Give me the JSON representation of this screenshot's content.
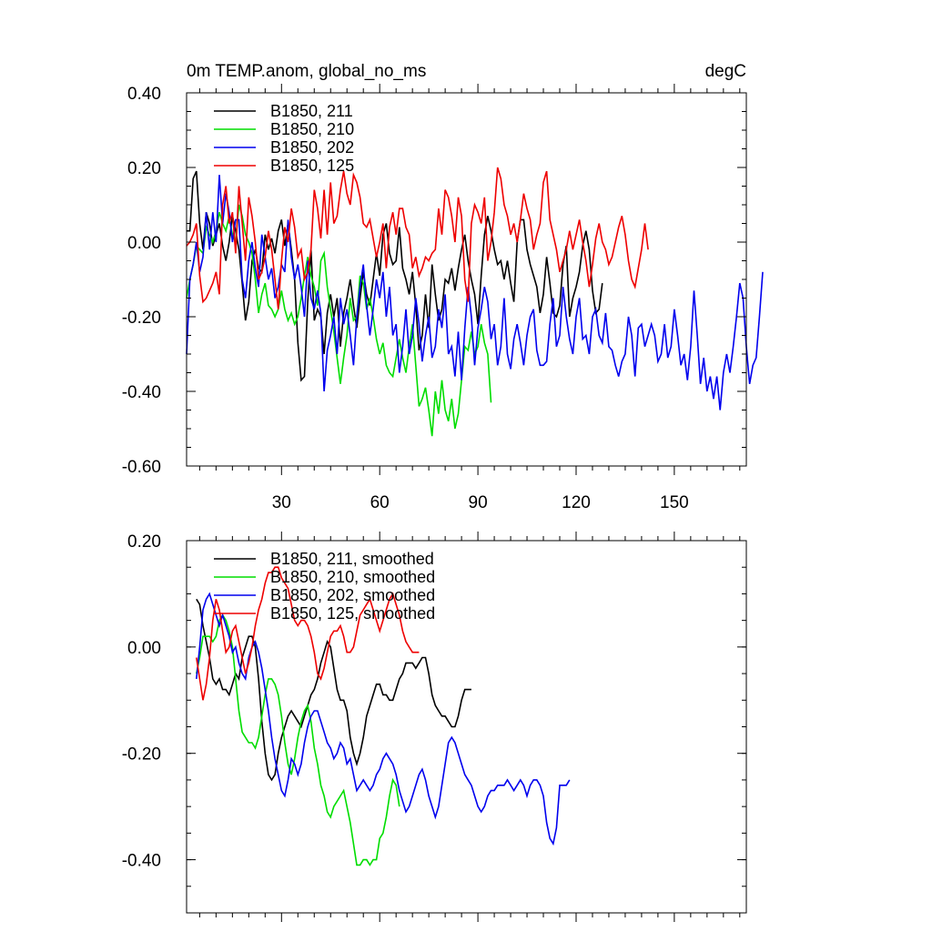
{
  "chart_data": [
    {
      "type": "line",
      "title": "0m TEMP.anom, global_no_ms",
      "units": "degC",
      "xlabel": "",
      "ylabel": "",
      "xlim": [
        1,
        172
      ],
      "ylim": [
        -0.6,
        0.4
      ],
      "yticks": [
        -0.6,
        -0.4,
        -0.2,
        0.0,
        0.2,
        0.4
      ],
      "ytick_labels": [
        "-0.60",
        "-0.40",
        "-0.20",
        "0.00",
        "0.20",
        "0.40"
      ],
      "xticks": [
        30,
        60,
        90,
        120,
        150
      ],
      "xtick_labels": [
        "30",
        "60",
        "90",
        "120",
        "150"
      ],
      "legend": "top-left",
      "series": [
        {
          "name": "B1850, 211",
          "color": "#000000",
          "x_start": 1,
          "values": [
            0.03,
            0.03,
            0.17,
            0.19,
            0.05,
            -0.02,
            0.08,
            0.05,
            -0.01,
            0.02,
            0.05,
            -0.01,
            -0.05,
            0.0,
            0.07,
            0.03,
            -0.02,
            -0.11,
            -0.21,
            -0.16,
            -0.05,
            -0.02,
            -0.07,
            -0.08,
            0.02,
            -0.02,
            0.01,
            -0.03,
            0.03,
            0.06,
            -0.01,
            0.05,
            -0.02,
            -0.1,
            -0.27,
            -0.37,
            -0.36,
            -0.16,
            -0.02,
            -0.21,
            -0.18,
            -0.2,
            -0.3,
            -0.19,
            -0.14,
            -0.2,
            -0.15,
            -0.28,
            -0.19,
            -0.15,
            -0.1,
            -0.17,
            -0.23,
            -0.15,
            -0.08,
            -0.14,
            -0.17,
            -0.1,
            -0.03,
            -0.09,
            0.02,
            0.05,
            -0.03,
            -0.06,
            -0.05,
            0.04,
            -0.07,
            -0.1,
            -0.14,
            -0.08,
            -0.17,
            -0.29,
            -0.25,
            -0.14,
            -0.23,
            -0.06,
            -0.14,
            -0.21,
            -0.18,
            -0.1,
            -0.11,
            -0.07,
            -0.13,
            -0.07,
            -0.02,
            0.02,
            -0.05,
            -0.1,
            -0.14,
            -0.22,
            -0.09,
            0.02,
            0.07,
            0.03,
            -0.02,
            -0.06,
            -0.05,
            -0.1,
            -0.05,
            -0.11,
            -0.16,
            0.0,
            0.06,
            0.06,
            -0.02,
            -0.06,
            -0.09,
            -0.12,
            -0.19,
            -0.14,
            -0.04,
            -0.11,
            -0.19,
            -0.2,
            -0.17,
            -0.06,
            -0.01,
            -0.2,
            -0.15,
            -0.12,
            -0.08,
            -0.01,
            0.03,
            -0.02,
            -0.13,
            -0.19,
            -0.18,
            -0.11
          ]
        },
        {
          "name": "B1850, 210",
          "color": "#00dd00",
          "x_start": 1,
          "values": [
            -0.15,
            -0.1,
            -0.06,
            -0.01,
            -0.02,
            -0.03,
            0.04,
            0.02,
            0.0,
            0.03,
            0.08,
            0.05,
            0.03,
            0.07,
            0.02,
            0.0,
            0.1,
            0.07,
            0.02,
            0.0,
            -0.03,
            -0.1,
            -0.19,
            -0.14,
            -0.11,
            -0.17,
            -0.18,
            -0.2,
            -0.18,
            -0.13,
            -0.18,
            -0.21,
            -0.19,
            -0.22,
            -0.2,
            -0.15,
            -0.09,
            -0.04,
            -0.09,
            -0.12,
            -0.17,
            -0.05,
            -0.03,
            -0.12,
            -0.18,
            -0.24,
            -0.31,
            -0.38,
            -0.31,
            -0.25,
            -0.15,
            -0.21,
            -0.2,
            -0.09,
            -0.11,
            -0.18,
            -0.15,
            -0.2,
            -0.26,
            -0.3,
            -0.27,
            -0.33,
            -0.35,
            -0.36,
            -0.31,
            -0.26,
            -0.31,
            -0.35,
            -0.28,
            -0.22,
            -0.33,
            -0.44,
            -0.42,
            -0.39,
            -0.45,
            -0.52,
            -0.4,
            -0.46,
            -0.37,
            -0.45,
            -0.48,
            -0.42,
            -0.5,
            -0.46,
            -0.37,
            -0.28,
            -0.29,
            -0.24,
            -0.3,
            -0.28,
            -0.22,
            -0.27,
            -0.3,
            -0.43
          ]
        },
        {
          "name": "B1850, 202",
          "color": "#0000ee",
          "x_start": 1,
          "values": [
            -0.3,
            -0.1,
            -0.06,
            0.0,
            -0.08,
            -0.04,
            0.08,
            -0.02,
            0.08,
            0.0,
            0.18,
            0.05,
            0.13,
            0.08,
            0.0,
            0.06,
            0.06,
            -0.1,
            -0.15,
            -0.05,
            0.0,
            -0.07,
            -0.12,
            0.02,
            -0.04,
            -0.1,
            -0.07,
            -0.15,
            -0.12,
            -0.06,
            -0.08,
            0.06,
            -0.04,
            -0.1,
            -0.06,
            -0.12,
            -0.2,
            -0.05,
            -0.15,
            -0.18,
            -0.13,
            -0.19,
            -0.4,
            -0.29,
            -0.25,
            -0.2,
            -0.3,
            -0.15,
            -0.22,
            -0.18,
            -0.25,
            -0.33,
            -0.2,
            -0.12,
            -0.06,
            -0.17,
            -0.25,
            -0.18,
            -0.1,
            -0.15,
            -0.08,
            -0.2,
            -0.12,
            -0.25,
            -0.22,
            -0.35,
            -0.28,
            -0.18,
            -0.3,
            -0.25,
            -0.15,
            -0.22,
            -0.32,
            -0.25,
            -0.2,
            -0.31,
            -0.28,
            -0.18,
            -0.23,
            -0.14,
            -0.3,
            -0.28,
            -0.36,
            -0.24,
            -0.37,
            -0.23,
            -0.12,
            -0.2,
            -0.33,
            -0.23,
            -0.18,
            -0.12,
            -0.16,
            -0.26,
            -0.22,
            -0.33,
            -0.28,
            -0.15,
            -0.3,
            -0.34,
            -0.26,
            -0.22,
            -0.27,
            -0.33,
            -0.25,
            -0.2,
            -0.18,
            -0.29,
            -0.33,
            -0.33,
            -0.32,
            -0.22,
            -0.15,
            -0.28,
            -0.25,
            -0.12,
            -0.2,
            -0.26,
            -0.3,
            -0.2,
            -0.15,
            -0.26,
            -0.25,
            -0.3,
            -0.2,
            -0.18,
            -0.25,
            -0.27,
            -0.19,
            -0.28,
            -0.29,
            -0.33,
            -0.36,
            -0.32,
            -0.3,
            -0.2,
            -0.25,
            -0.36,
            -0.23,
            -0.22,
            -0.28,
            -0.25,
            -0.22,
            -0.25,
            -0.32,
            -0.3,
            -0.22,
            -0.31,
            -0.28,
            -0.18,
            -0.25,
            -0.33,
            -0.3,
            -0.37,
            -0.28,
            -0.13,
            -0.25,
            -0.38,
            -0.31,
            -0.4,
            -0.36,
            -0.42,
            -0.36,
            -0.45,
            -0.35,
            -0.3,
            -0.35,
            -0.28,
            -0.2,
            -0.11,
            -0.15,
            -0.28,
            -0.38,
            -0.33,
            -0.31,
            -0.2,
            -0.08
          ]
        },
        {
          "name": "B1850, 125",
          "color": "#ee0000",
          "x_start": 1,
          "values": [
            -0.01,
            0.0,
            0.02,
            0.05,
            -0.09,
            -0.16,
            -0.15,
            -0.13,
            -0.11,
            -0.08,
            -0.14,
            0.1,
            0.15,
            0.05,
            0.08,
            -0.03,
            0.15,
            0.05,
            -0.05,
            0.12,
            0.07,
            0.0,
            -0.1,
            -0.08,
            -0.04,
            0.03,
            -0.02,
            -0.1,
            -0.18,
            -0.05,
            0.04,
            0.0,
            0.09,
            0.04,
            -0.04,
            -0.02,
            -0.1,
            -0.08,
            -0.02,
            0.14,
            0.09,
            0.01,
            0.14,
            0.02,
            0.16,
            0.05,
            0.07,
            0.14,
            0.19,
            0.13,
            0.1,
            0.18,
            0.16,
            0.12,
            0.05,
            0.04,
            0.06,
            0.01,
            -0.04,
            0.0,
            0.05,
            -0.07,
            0.04,
            0.08,
            0.02,
            0.09,
            0.09,
            0.04,
            0.02,
            -0.07,
            -0.04,
            -0.09,
            -0.07,
            -0.04,
            -0.05,
            -0.03,
            -0.02,
            0.09,
            0.02,
            0.14,
            0.12,
            0.07,
            0.0,
            0.12,
            0.07,
            -0.1,
            -0.16,
            0.05,
            0.1,
            0.08,
            0.05,
            0.12,
            -0.05,
            0.0,
            0.08,
            0.2,
            0.17,
            0.1,
            0.07,
            0.02,
            0.05,
            0.0,
            0.06,
            0.13,
            0.09,
            0.06,
            -0.02,
            0.02,
            0.05,
            0.16,
            0.19,
            0.06,
            0.02,
            -0.02,
            -0.08,
            -0.05,
            -0.02,
            0.03,
            -0.02,
            0.02,
            0.06,
            0.0,
            -0.05,
            -0.12,
            -0.06,
            0.01,
            0.05,
            0.0,
            -0.02,
            -0.06,
            -0.04,
            0.0,
            0.04,
            0.07,
            0.02,
            -0.05,
            -0.1,
            -0.12,
            -0.07,
            -0.02,
            0.05,
            -0.02
          ]
        }
      ]
    },
    {
      "type": "line",
      "title": "",
      "xlabel": "",
      "ylabel": "",
      "xlim": [
        1,
        172
      ],
      "ylim": [
        -0.5,
        0.2
      ],
      "yticks": [
        -0.4,
        -0.2,
        0.0,
        0.2
      ],
      "ytick_labels": [
        "-0.40",
        "-0.20",
        "0.00",
        "0.20"
      ],
      "xticks": [
        30,
        60,
        90,
        120,
        150
      ],
      "xtick_labels": [],
      "legend": "top-left",
      "series": [
        {
          "name": "B1850, 211, smoothed",
          "color": "#000000",
          "x_start": 4,
          "values": [
            0.09,
            0.08,
            0.04,
            0.01,
            -0.02,
            -0.06,
            -0.07,
            -0.06,
            -0.08,
            -0.08,
            -0.09,
            -0.07,
            -0.05,
            -0.06,
            -0.02,
            0.0,
            0.02,
            0.02,
            0.0,
            -0.06,
            -0.14,
            -0.2,
            -0.24,
            -0.25,
            -0.24,
            -0.2,
            -0.17,
            -0.15,
            -0.13,
            -0.12,
            -0.13,
            -0.14,
            -0.15,
            -0.13,
            -0.11,
            -0.09,
            -0.08,
            -0.06,
            -0.03,
            -0.01,
            0.01,
            0.0,
            -0.04,
            -0.08,
            -0.1,
            -0.1,
            -0.12,
            -0.17,
            -0.2,
            -0.22,
            -0.2,
            -0.17,
            -0.13,
            -0.11,
            -0.09,
            -0.07,
            -0.07,
            -0.09,
            -0.09,
            -0.1,
            -0.1,
            -0.08,
            -0.06,
            -0.05,
            -0.03,
            -0.03,
            -0.03,
            -0.04,
            -0.03,
            -0.02,
            -0.02,
            -0.05,
            -0.09,
            -0.11,
            -0.12,
            -0.13,
            -0.13,
            -0.14,
            -0.15,
            -0.15,
            -0.13,
            -0.1,
            -0.08,
            -0.08,
            -0.08
          ]
        },
        {
          "name": "B1850, 210, smoothed",
          "color": "#00dd00",
          "x_start": 4,
          "values": [
            -0.05,
            -0.02,
            0.02,
            0.02,
            0.02,
            0.01,
            0.02,
            0.05,
            0.06,
            0.05,
            0.03,
            0.0,
            -0.06,
            -0.12,
            -0.16,
            -0.17,
            -0.18,
            -0.18,
            -0.19,
            -0.17,
            -0.13,
            -0.09,
            -0.06,
            -0.06,
            -0.07,
            -0.09,
            -0.13,
            -0.18,
            -0.22,
            -0.24,
            -0.21,
            -0.17,
            -0.14,
            -0.12,
            -0.11,
            -0.14,
            -0.19,
            -0.22,
            -0.26,
            -0.28,
            -0.31,
            -0.32,
            -0.3,
            -0.29,
            -0.28,
            -0.27,
            -0.3,
            -0.33,
            -0.37,
            -0.41,
            -0.41,
            -0.4,
            -0.4,
            -0.41,
            -0.4,
            -0.4,
            -0.36,
            -0.35,
            -0.32,
            -0.28,
            -0.25,
            -0.26,
            -0.3
          ]
        },
        {
          "name": "B1850, 202, smoothed",
          "color": "#0000ee",
          "x_start": 4,
          "values": [
            -0.06,
            0.0,
            0.07,
            0.09,
            0.1,
            0.08,
            0.06,
            0.04,
            0.06,
            0.04,
            0.02,
            -0.01,
            0.0,
            -0.03,
            -0.05,
            -0.06,
            -0.02,
            0.0,
            0.01,
            -0.01,
            -0.04,
            -0.08,
            -0.12,
            -0.17,
            -0.21,
            -0.24,
            -0.27,
            -0.28,
            -0.25,
            -0.21,
            -0.22,
            -0.24,
            -0.22,
            -0.18,
            -0.15,
            -0.13,
            -0.12,
            -0.12,
            -0.14,
            -0.16,
            -0.18,
            -0.19,
            -0.21,
            -0.2,
            -0.18,
            -0.19,
            -0.22,
            -0.21,
            -0.24,
            -0.27,
            -0.26,
            -0.25,
            -0.26,
            -0.27,
            -0.26,
            -0.24,
            -0.23,
            -0.21,
            -0.2,
            -0.21,
            -0.22,
            -0.24,
            -0.27,
            -0.29,
            -0.31,
            -0.3,
            -0.28,
            -0.26,
            -0.24,
            -0.23,
            -0.25,
            -0.28,
            -0.3,
            -0.32,
            -0.3,
            -0.26,
            -0.22,
            -0.18,
            -0.17,
            -0.18,
            -0.2,
            -0.22,
            -0.24,
            -0.25,
            -0.26,
            -0.28,
            -0.3,
            -0.31,
            -0.3,
            -0.28,
            -0.27,
            -0.27,
            -0.26,
            -0.26,
            -0.26,
            -0.25,
            -0.26,
            -0.27,
            -0.26,
            -0.25,
            -0.26,
            -0.28,
            -0.26,
            -0.25,
            -0.25,
            -0.26,
            -0.28,
            -0.33,
            -0.36,
            -0.37,
            -0.34,
            -0.26,
            -0.26,
            -0.26,
            -0.25
          ]
        },
        {
          "name": "B1850, 125, smoothed",
          "color": "#ee0000",
          "x_start": 4,
          "values": [
            -0.02,
            -0.06,
            -0.1,
            -0.07,
            -0.02,
            0.05,
            0.09,
            0.07,
            0.03,
            -0.01,
            0.0,
            0.03,
            0.04,
            0.01,
            -0.02,
            -0.05,
            -0.03,
            0.0,
            0.04,
            0.07,
            0.09,
            0.12,
            0.14,
            0.14,
            0.15,
            0.15,
            0.13,
            0.12,
            0.11,
            0.08,
            0.05,
            0.04,
            0.05,
            0.05,
            0.04,
            0.02,
            -0.01,
            -0.05,
            -0.06,
            -0.04,
            -0.01,
            0.02,
            0.03,
            0.03,
            0.04,
            0.02,
            -0.01,
            -0.01,
            0.0,
            0.03,
            0.06,
            0.07,
            0.08,
            0.09,
            0.07,
            0.05,
            0.03,
            0.05,
            0.07,
            0.09,
            0.1,
            0.08,
            0.06,
            0.03,
            0.01,
            0.0,
            -0.01,
            -0.01,
            -0.01
          ]
        }
      ]
    }
  ]
}
